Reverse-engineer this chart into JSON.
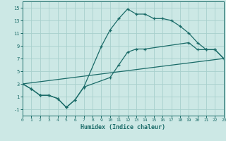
{
  "background_color": "#cce8e5",
  "grid_color": "#a8d0cc",
  "line_color": "#1a6b68",
  "xlabel": "Humidex (Indice chaleur)",
  "xlim": [
    0,
    23
  ],
  "ylim": [
    -2,
    16
  ],
  "xticks": [
    0,
    1,
    2,
    3,
    4,
    5,
    6,
    7,
    8,
    9,
    10,
    11,
    12,
    13,
    14,
    15,
    16,
    17,
    18,
    19,
    20,
    21,
    22,
    23
  ],
  "yticks": [
    -1,
    1,
    3,
    5,
    7,
    9,
    11,
    13,
    15
  ],
  "line1_x": [
    0,
    1,
    2,
    3,
    4,
    5,
    6,
    7,
    9,
    10,
    11,
    12,
    13,
    14,
    15,
    16,
    17,
    18,
    19,
    20,
    21,
    22,
    23
  ],
  "line1_y": [
    3,
    2.2,
    1.2,
    1.2,
    0.7,
    -0.7,
    0.5,
    2.5,
    8.9,
    11.5,
    13.3,
    14.8,
    14.0,
    14.0,
    13.3,
    13.3,
    13.0,
    12.1,
    11.0,
    9.5,
    8.4,
    8.4,
    7.0
  ],
  "line2_x": [
    0,
    1,
    2,
    3,
    4,
    5,
    6,
    7,
    10,
    11,
    12,
    13,
    14,
    19,
    20,
    21,
    22,
    23
  ],
  "line2_y": [
    3,
    2.2,
    1.2,
    1.2,
    0.7,
    -0.7,
    0.5,
    2.5,
    4.0,
    6.0,
    8.0,
    8.5,
    8.5,
    9.5,
    8.4,
    8.4,
    8.4,
    7.0
  ],
  "line3_x": [
    0,
    23
  ],
  "line3_y": [
    3,
    7
  ]
}
